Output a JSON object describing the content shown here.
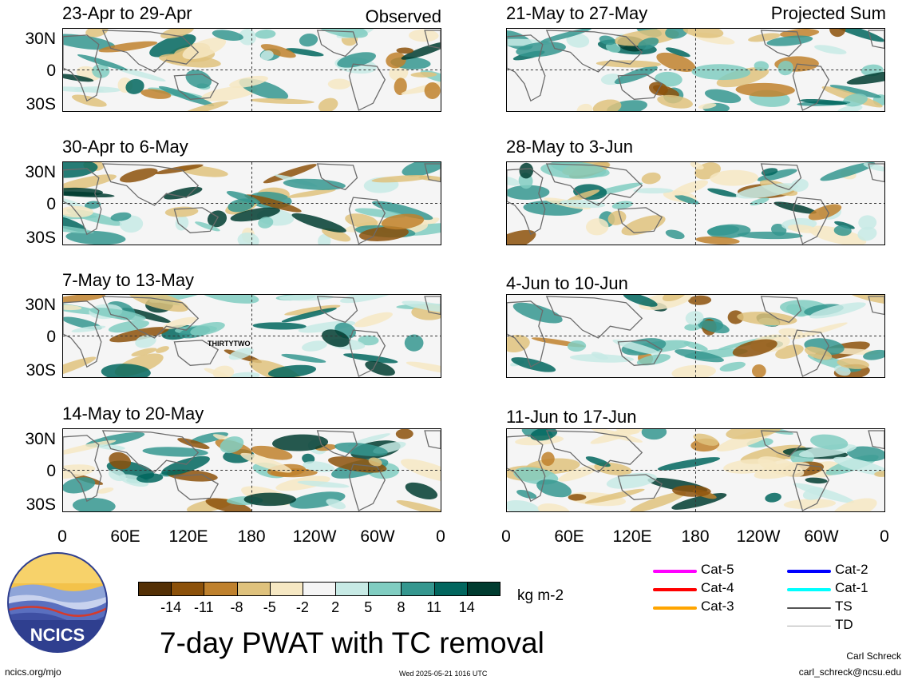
{
  "panels": [
    {
      "id": "obs1",
      "title": "23-Apr to 29-Apr",
      "tag": "Observed"
    },
    {
      "id": "obs2",
      "title": "30-Apr to 6-May",
      "tag": ""
    },
    {
      "id": "obs3",
      "title": "7-May to 13-May",
      "tag": "",
      "annotation": "THIRTYTWO"
    },
    {
      "id": "obs4",
      "title": "14-May to 20-May",
      "tag": ""
    },
    {
      "id": "proj1",
      "title": "21-May to 27-May",
      "tag": "Projected Sum"
    },
    {
      "id": "proj2",
      "title": "28-May to 3-Jun",
      "tag": ""
    },
    {
      "id": "proj3",
      "title": "4-Jun to 10-Jun",
      "tag": ""
    },
    {
      "id": "proj4",
      "title": "11-Jun to 17-Jun",
      "tag": ""
    }
  ],
  "lat_labels": [
    "30N",
    "0",
    "30S"
  ],
  "lon_labels": [
    "0",
    "60E",
    "120E",
    "180",
    "120W",
    "60W",
    "0"
  ],
  "colorbar": {
    "unit": "kg m-2",
    "colors": [
      "#543005",
      "#8c510a",
      "#bf812d",
      "#dfc27d",
      "#f6e8c3",
      "#f5f5f5",
      "#c7eae5",
      "#80cdc1",
      "#35978f",
      "#01665e",
      "#003c30"
    ],
    "labels": [
      "-14",
      "-11",
      "-8",
      "-5",
      "-2",
      "2",
      "5",
      "8",
      "11",
      "14"
    ]
  },
  "tc_legend": [
    {
      "label": "Cat-5",
      "color": "#ff00ff"
    },
    {
      "label": "Cat-4",
      "color": "#ff0000"
    },
    {
      "label": "Cat-3",
      "color": "#ffa500"
    },
    {
      "label": "Cat-2",
      "color": "#0000ff"
    },
    {
      "label": "Cat-1",
      "color": "#00ffff"
    },
    {
      "label": "TS",
      "color": "#555555"
    },
    {
      "label": "TD",
      "color": "#aaaaaa"
    }
  ],
  "logo_text": "NCICS",
  "main_title": "7-day PWAT with TC removal",
  "footer": {
    "url": "ncics.org/mjo",
    "timestamp": "Wed 2025-05-21 1016 UTC",
    "author": "Carl Schreck",
    "email": "carl_schreck@ncsu.edu"
  }
}
